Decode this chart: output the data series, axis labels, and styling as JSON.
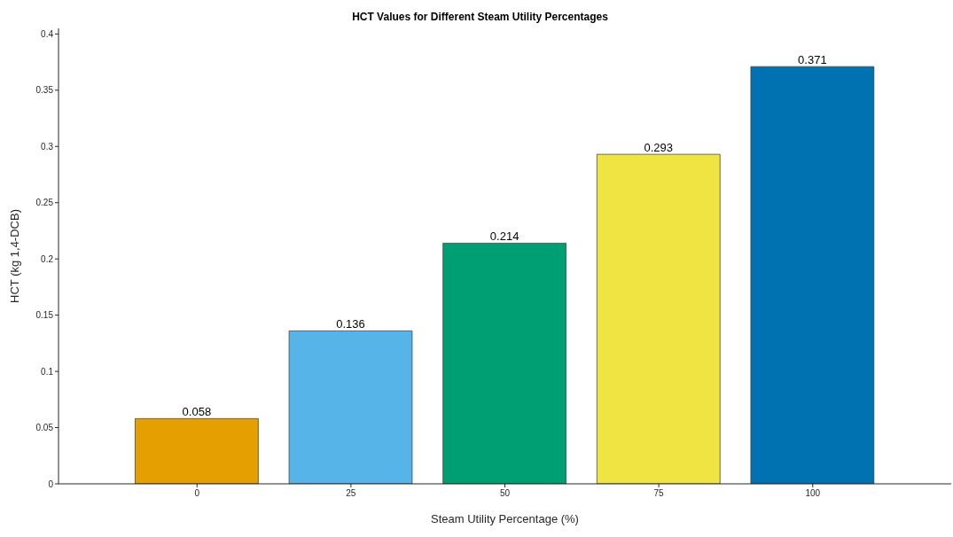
{
  "chart_data": {
    "type": "bar",
    "title": "HCT Values for Different Steam Utility Percentages",
    "xlabel": "Steam Utility Percentage (%)",
    "ylabel": "HCT (kg 1,4-DCB)",
    "categories": [
      "0",
      "25",
      "50",
      "75",
      "100"
    ],
    "values": [
      0.058,
      0.136,
      0.214,
      0.293,
      0.371
    ],
    "colors": [
      "#e69f00",
      "#56b4e9",
      "#009e73",
      "#f0e442",
      "#0072b2"
    ],
    "ylim": [
      0,
      0.405
    ],
    "yticks": [
      0,
      0.05,
      0.1,
      0.15,
      0.2,
      0.25,
      0.3,
      0.35,
      0.4
    ],
    "data_labels": true,
    "grid": false,
    "legend": false
  }
}
